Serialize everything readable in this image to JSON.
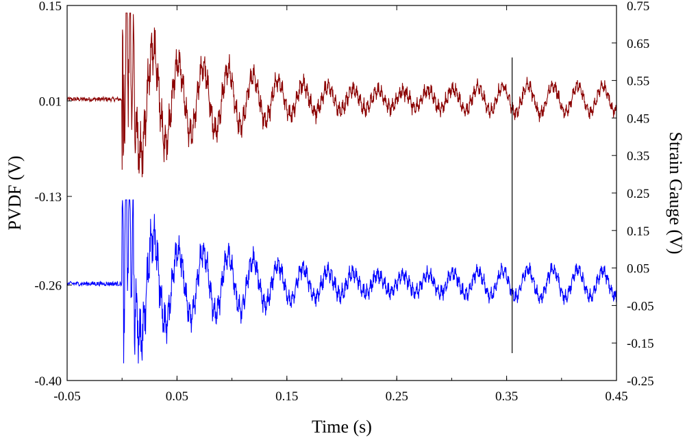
{
  "chart_data": {
    "type": "line",
    "title": "",
    "xlabel": "Time (s)",
    "ylabel_left": "PVDF (V)",
    "ylabel_right": "Strain Gauge (V)",
    "xlim": [
      -0.05,
      0.45
    ],
    "ylim_left": [
      -0.4,
      0.15
    ],
    "ylim_right": [
      -0.25,
      0.75
    ],
    "x_ticks": [
      "-0.05",
      "0.05",
      "0.15",
      "0.25",
      "0.35",
      "0.45"
    ],
    "x_tick_values": [
      -0.05,
      0.05,
      0.15,
      0.25,
      0.35,
      0.45
    ],
    "y_left_ticks": [
      "0.15",
      "0.01",
      "-0.13",
      "-0.26",
      "-0.40"
    ],
    "y_left_tick_values": [
      0.15,
      0.01,
      -0.13,
      -0.26,
      -0.4
    ],
    "y_right_ticks": [
      "0.75",
      "0.65",
      "0.55",
      "0.45",
      "0.35",
      "0.25",
      "0.15",
      "0.05",
      "-0.05",
      "-0.15",
      "-0.25"
    ],
    "y_right_tick_values": [
      0.75,
      0.65,
      0.55,
      0.45,
      0.35,
      0.25,
      0.15,
      0.05,
      -0.05,
      -0.15,
      -0.25
    ],
    "grid": false,
    "series": [
      {
        "name": "Strain Gauge",
        "axis": "right",
        "color": "#8b0000",
        "baseline": 0.5,
        "onset_time": 0.0,
        "peak_max": 0.73,
        "peak_min": 0.28,
        "oscillation_frequency_hz": 44,
        "envelope": [
          {
            "t": 0.0,
            "amp": 0.22
          },
          {
            "t": 0.05,
            "amp": 0.1
          },
          {
            "t": 0.15,
            "amp": 0.055
          },
          {
            "t": 0.25,
            "amp": 0.045
          },
          {
            "t": 0.35,
            "amp": 0.04
          },
          {
            "t": 0.45,
            "amp": 0.035
          }
        ]
      },
      {
        "name": "PVDF",
        "axis": "left",
        "color": "#0000ff",
        "baseline": -0.258,
        "onset_time": 0.0,
        "peak_max": -0.135,
        "peak_min": -0.375,
        "oscillation_frequency_hz": 44,
        "envelope": [
          {
            "t": 0.0,
            "amp": 0.12
          },
          {
            "t": 0.05,
            "amp": 0.05
          },
          {
            "t": 0.15,
            "amp": 0.032
          },
          {
            "t": 0.25,
            "amp": 0.025
          },
          {
            "t": 0.35,
            "amp": 0.022
          },
          {
            "t": 0.45,
            "amp": 0.02
          }
        ]
      }
    ],
    "annotations": [
      {
        "type": "vertical_line",
        "x": 0.355,
        "color": "#000000"
      }
    ]
  }
}
